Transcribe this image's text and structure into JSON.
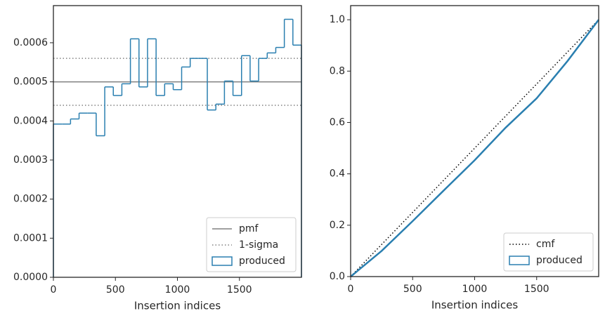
{
  "chart_data": [
    {
      "type": "histogram",
      "xlabel": "Insertion indices",
      "xlim": [
        0,
        2000
      ],
      "ylim": [
        0,
        0.000695
      ],
      "xticks": [
        0,
        500,
        1000,
        1500
      ],
      "yticks": [
        {
          "value": 0,
          "label": "0.0000"
        },
        {
          "value": 0.0001,
          "label": "0.0001"
        },
        {
          "value": 0.0002,
          "label": "0.0002"
        },
        {
          "value": 0.0003,
          "label": "0.0003"
        },
        {
          "value": 0.0004,
          "label": "0.0004"
        },
        {
          "value": 0.0005,
          "label": "0.0005"
        },
        {
          "value": 0.0006,
          "label": "0.0006"
        }
      ],
      "legend": "lower right",
      "reference_lines": [
        {
          "name": "pmf",
          "color": "#808080",
          "style": "solid",
          "values": [
            0.0005
          ]
        },
        {
          "name": "1-sigma",
          "color": "#808080",
          "style": "dotted",
          "values": [
            0.00044,
            0.00056
          ]
        }
      ],
      "series": [
        {
          "name": "produced",
          "color": "#2a7fb0",
          "bins": [
            0,
            69,
            138,
            207,
            276,
            345,
            414,
            483,
            552,
            621,
            690,
            759,
            828,
            897,
            966,
            1034,
            1103,
            1172,
            1241,
            1310,
            1379,
            1448,
            1517,
            1586,
            1655,
            1724,
            1793,
            1862,
            1931,
            2000
          ],
          "values": [
            0.000392,
            0.000392,
            0.000405,
            0.00042,
            0.00042,
            0.000362,
            0.000487,
            0.000465,
            0.000495,
            0.00061,
            0.000487,
            0.00061,
            0.000465,
            0.000495,
            0.00048,
            0.000538,
            0.00056,
            0.00056,
            0.000428,
            0.000443,
            0.000502,
            0.000465,
            0.000567,
            0.000502,
            0.00056,
            0.000574,
            0.000588,
            0.00066,
            0.000594
          ]
        }
      ]
    },
    {
      "type": "line",
      "xlabel": "Insertion indices",
      "xlim": [
        0,
        2000
      ],
      "ylim": [
        0,
        1.055
      ],
      "xticks": [
        0,
        500,
        1000,
        1500
      ],
      "yticks": [
        {
          "value": 0,
          "label": "0.0"
        },
        {
          "value": 0.2,
          "label": "0.2"
        },
        {
          "value": 0.4,
          "label": "0.4"
        },
        {
          "value": 0.6,
          "label": "0.6"
        },
        {
          "value": 0.8,
          "label": "0.8"
        },
        {
          "value": 1,
          "label": "1.0"
        }
      ],
      "legend": "lower right",
      "series": [
        {
          "name": "cmf",
          "color": "#000000",
          "style": "dotted",
          "x": [
            0,
            2000
          ],
          "values": [
            0,
            1
          ]
        },
        {
          "name": "produced",
          "color": "#2a7fb0",
          "style": "solid",
          "x": [
            0,
            250,
            500,
            750,
            1000,
            1250,
            1500,
            1750,
            2000
          ],
          "values": [
            0,
            0.1,
            0.216,
            0.335,
            0.453,
            0.58,
            0.694,
            0.84,
            1
          ]
        }
      ]
    }
  ]
}
